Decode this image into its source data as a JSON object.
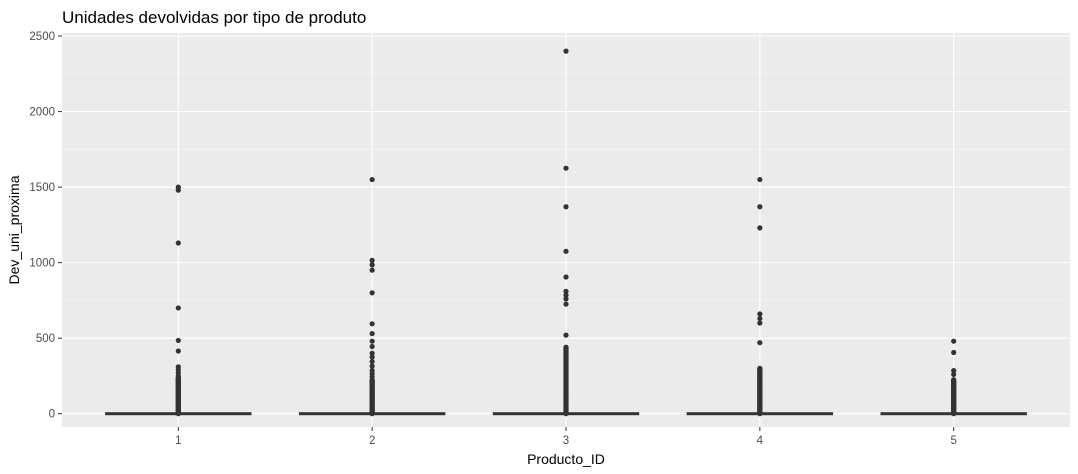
{
  "chart_data": {
    "type": "box",
    "title": "Unidades devolvidas por tipo de produto",
    "xlabel": "Producto_ID",
    "ylabel": "Dev_uni_proxima",
    "categories": [
      "1",
      "2",
      "3",
      "4",
      "5"
    ],
    "ylim": [
      -88,
      2520
    ],
    "yticks": [
      0,
      500,
      1000,
      1500,
      2000,
      2500
    ],
    "grid": true,
    "legend": "none",
    "colors": {
      "panel": "#EBEBEB",
      "grid_major": "#FFFFFF",
      "grid_minor": "#F5F5F5",
      "box": "#333333",
      "points": "#333333",
      "tick_text": "#4D4D4D"
    },
    "series": [
      {
        "category": "1",
        "median": 0,
        "q1": 0,
        "q3": 0,
        "outlier_range": [
          0,
          240
        ],
        "outliers": [
          1500,
          1480,
          1130,
          700,
          485,
          415,
          310,
          290,
          270,
          250
        ]
      },
      {
        "category": "2",
        "median": 0,
        "q1": 0,
        "q3": 0,
        "outlier_range": [
          0,
          225
        ],
        "outliers": [
          1550,
          1015,
          985,
          950,
          800,
          595,
          530,
          480,
          445,
          400,
          375,
          345,
          315,
          285,
          265,
          245
        ]
      },
      {
        "category": "3",
        "median": 0,
        "q1": 0,
        "q3": 0,
        "outlier_range": [
          0,
          440
        ],
        "outliers": [
          2400,
          1625,
          1370,
          1075,
          905,
          810,
          785,
          760,
          725,
          520
        ]
      },
      {
        "category": "4",
        "median": 0,
        "q1": 0,
        "q3": 0,
        "outlier_range": [
          0,
          300
        ],
        "outliers": [
          1550,
          1370,
          1230,
          660,
          630,
          600,
          470
        ]
      },
      {
        "category": "5",
        "median": 0,
        "q1": 0,
        "q3": 0,
        "outlier_range": [
          0,
          225
        ],
        "outliers": [
          480,
          405,
          285,
          260
        ]
      }
    ]
  }
}
